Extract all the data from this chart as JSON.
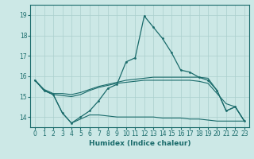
{
  "xlabel": "Humidex (Indice chaleur)",
  "ylabel": "",
  "xlim": [
    -0.5,
    23.5
  ],
  "ylim": [
    13.5,
    19.5
  ],
  "yticks": [
    14,
    15,
    16,
    17,
    18,
    19
  ],
  "xticks": [
    0,
    1,
    2,
    3,
    4,
    5,
    6,
    7,
    8,
    9,
    10,
    11,
    12,
    13,
    14,
    15,
    16,
    17,
    18,
    19,
    20,
    21,
    22,
    23
  ],
  "bg_color": "#cce8e6",
  "grid_color": "#aacfcd",
  "line_color": "#1a6b6b",
  "line1_x": [
    0,
    1,
    2,
    3,
    4,
    5,
    6,
    7,
    8,
    9,
    10,
    11,
    12,
    13,
    14,
    15,
    16,
    17,
    18,
    19,
    20,
    21,
    22,
    23
  ],
  "line1_y": [
    15.8,
    15.3,
    15.1,
    14.2,
    13.7,
    14.0,
    14.3,
    14.8,
    15.4,
    15.6,
    16.7,
    16.9,
    18.95,
    18.4,
    17.85,
    17.15,
    16.3,
    16.2,
    15.95,
    15.8,
    15.3,
    14.3,
    14.5,
    13.8
  ],
  "line2_x": [
    0,
    1,
    2,
    3,
    4,
    5,
    6,
    7,
    8,
    9,
    10,
    11,
    12,
    13,
    14,
    15,
    16,
    17,
    18,
    19,
    20,
    21,
    22,
    23
  ],
  "line2_y": [
    15.8,
    15.35,
    15.15,
    15.15,
    15.1,
    15.2,
    15.35,
    15.5,
    15.6,
    15.7,
    15.8,
    15.85,
    15.9,
    15.95,
    15.95,
    15.95,
    15.95,
    15.95,
    15.95,
    15.9,
    15.3,
    14.3,
    14.5,
    13.8
  ],
  "line3_x": [
    0,
    1,
    2,
    3,
    4,
    5,
    6,
    7,
    8,
    9,
    10,
    11,
    12,
    13,
    14,
    15,
    16,
    17,
    18,
    19,
    20,
    21,
    22,
    23
  ],
  "line3_y": [
    15.8,
    15.3,
    15.1,
    15.05,
    15.0,
    15.1,
    15.3,
    15.45,
    15.55,
    15.65,
    15.7,
    15.75,
    15.8,
    15.8,
    15.8,
    15.8,
    15.8,
    15.8,
    15.75,
    15.65,
    15.15,
    14.65,
    14.5,
    13.8
  ],
  "line4_x": [
    0,
    1,
    2,
    3,
    4,
    5,
    6,
    7,
    8,
    9,
    10,
    11,
    12,
    13,
    14,
    15,
    16,
    17,
    18,
    19,
    20,
    21,
    22,
    23
  ],
  "line4_y": [
    15.8,
    15.3,
    15.1,
    14.2,
    13.7,
    13.9,
    14.1,
    14.1,
    14.05,
    14.0,
    14.0,
    14.0,
    14.0,
    14.0,
    13.95,
    13.95,
    13.95,
    13.9,
    13.9,
    13.85,
    13.8,
    13.8,
    13.8,
    13.8
  ]
}
